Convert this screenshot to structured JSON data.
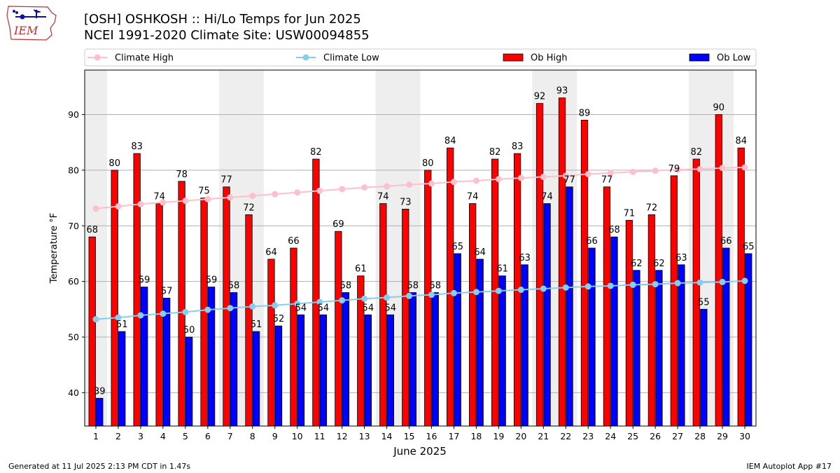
{
  "header": {
    "title_line1": "[OSH] OSHKOSH :: Hi/Lo Temps for Jun 2025",
    "title_line2": "NCEI 1991-2020 Climate Site: USW00094855"
  },
  "logo": {
    "text": "IEM",
    "icon": "iowa-state-map-icon"
  },
  "footer": {
    "left": "Generated at 11 Jul 2025 2:13 PM CDT in 1.47s",
    "right": "IEM Autoplot App #17"
  },
  "colors": {
    "ob_high": "#ff0000",
    "ob_low": "#0000ff",
    "climate_high": "#ffc0cb",
    "climate_low": "#87ceeb",
    "weekend_shade": "#eeeeee",
    "grid": "#b0b0b0"
  },
  "chart_data": {
    "type": "bar",
    "xlabel": "June 2025",
    "ylabel": "Temperature °F",
    "ylim": [
      34,
      98
    ],
    "yticks": [
      40,
      50,
      60,
      70,
      80,
      90
    ],
    "grid": "horizontal",
    "legend_placement": "top",
    "categories": [
      "1",
      "2",
      "3",
      "4",
      "5",
      "6",
      "7",
      "8",
      "9",
      "10",
      "11",
      "12",
      "13",
      "14",
      "15",
      "16",
      "17",
      "18",
      "19",
      "20",
      "21",
      "22",
      "23",
      "24",
      "25",
      "26",
      "27",
      "28",
      "29",
      "30"
    ],
    "weekend_days": [
      1,
      7,
      8,
      14,
      15,
      21,
      22,
      28,
      29
    ],
    "series": [
      {
        "name": "Climate High",
        "kind": "line",
        "values": [
          73.1,
          73.5,
          73.9,
          74.2,
          74.5,
          74.8,
          75.1,
          75.4,
          75.7,
          76.0,
          76.3,
          76.6,
          76.9,
          77.1,
          77.4,
          77.6,
          77.9,
          78.1,
          78.4,
          78.6,
          78.8,
          79.0,
          79.3,
          79.5,
          79.7,
          79.9,
          80.1,
          80.2,
          80.4,
          80.5
        ]
      },
      {
        "name": "Climate Low",
        "kind": "line",
        "values": [
          53.2,
          53.5,
          53.9,
          54.2,
          54.5,
          54.9,
          55.2,
          55.5,
          55.7,
          56.0,
          56.3,
          56.6,
          56.9,
          57.1,
          57.4,
          57.6,
          57.9,
          58.1,
          58.3,
          58.5,
          58.7,
          58.9,
          59.1,
          59.2,
          59.4,
          59.5,
          59.7,
          59.8,
          59.9,
          60.1
        ]
      },
      {
        "name": "Ob High",
        "kind": "bar",
        "values": [
          68,
          80,
          83,
          74,
          78,
          75,
          77,
          72,
          64,
          66,
          82,
          69,
          61,
          74,
          73,
          80,
          84,
          74,
          82,
          83,
          92,
          93,
          89,
          77,
          71,
          72,
          79,
          82,
          90,
          84
        ]
      },
      {
        "name": "Ob Low",
        "kind": "bar",
        "values": [
          39,
          51,
          59,
          57,
          50,
          59,
          58,
          51,
          52,
          54,
          54,
          58,
          54,
          54,
          58,
          58,
          65,
          64,
          61,
          63,
          74,
          77,
          66,
          68,
          62,
          62,
          63,
          55,
          66,
          65
        ]
      }
    ]
  }
}
